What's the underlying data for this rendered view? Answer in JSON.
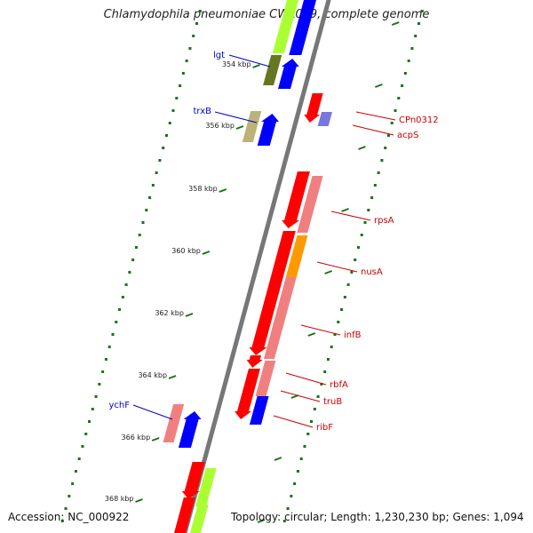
{
  "header": {
    "title": "Chlamydophila pneumoniae CWL029, complete genome"
  },
  "footer": {
    "accession": "Accession: NC_000922",
    "summary": "Topology: circular; Length: 1,230,230 bp; Genes: 1,094"
  },
  "ticks": [
    {
      "label": "354 kbp",
      "pos": 354
    },
    {
      "label": "356 kbp",
      "pos": 356
    },
    {
      "label": "358 kbp",
      "pos": 358
    },
    {
      "label": "360 kbp",
      "pos": 360
    },
    {
      "label": "362 kbp",
      "pos": 362
    },
    {
      "label": "364 kbp",
      "pos": 364
    },
    {
      "label": "366 kbp",
      "pos": 366
    },
    {
      "label": "368 kbp",
      "pos": 368
    }
  ],
  "gene_labels": [
    {
      "name": "lgt",
      "side": "left",
      "color": "#0000cc"
    },
    {
      "name": "trxB",
      "side": "left",
      "color": "#0000cc"
    },
    {
      "name": "ychF",
      "side": "left",
      "color": "#0000cc"
    },
    {
      "name": "CPn0312",
      "side": "right",
      "color": "#cc0000"
    },
    {
      "name": "acpS",
      "side": "right",
      "color": "#cc0000"
    },
    {
      "name": "rpsA",
      "side": "right",
      "color": "#cc0000"
    },
    {
      "name": "nusA",
      "side": "right",
      "color": "#cc0000"
    },
    {
      "name": "infB",
      "side": "right",
      "color": "#cc0000"
    },
    {
      "name": "rbfA",
      "side": "right",
      "color": "#cc0000"
    },
    {
      "name": "truB",
      "side": "right",
      "color": "#cc0000"
    },
    {
      "name": "ribF",
      "side": "right",
      "color": "#cc0000"
    }
  ],
  "colors": {
    "backbone": "#777777",
    "forward_gene": "#ff0000",
    "reverse_gene": "#0000ff",
    "cog_pink": "#f08080",
    "cog_orange": "#ff9900",
    "cog_olive": "#667722",
    "cog_khaki": "#bbb377",
    "cog_lime": "#aaff33",
    "cog_purple": "#7777dd",
    "tick_green": "#117711"
  }
}
